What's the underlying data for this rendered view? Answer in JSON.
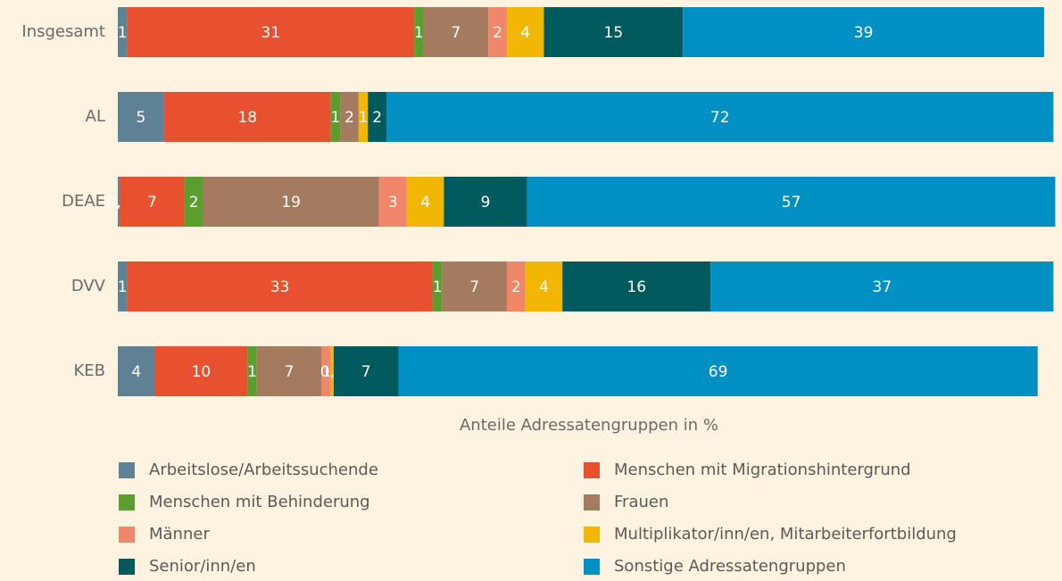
{
  "chart_data": {
    "type": "stacked_barh",
    "categories": [
      "Insgesamt",
      "AL",
      "DEAE",
      "DVV",
      "KEB"
    ],
    "xlabel": "Anteile Adressatengruppen in %",
    "xlim": [
      0,
      100
    ],
    "series": [
      {
        "name": "Arbeitslose/Arbeitssuchende",
        "color": "#5e8196",
        "values": [
          1,
          5,
          0.2,
          1,
          4
        ],
        "value_labels": [
          "1",
          "5",
          "0,2",
          "1",
          "4"
        ]
      },
      {
        "name": "Menschen mit Migrationshintergrund",
        "color": "#e8512f",
        "values": [
          31,
          18,
          7,
          33,
          10
        ]
      },
      {
        "name": "Menschen mit Behinderung",
        "color": "#5a9e2f",
        "values": [
          1,
          1,
          2,
          1,
          1
        ]
      },
      {
        "name": "Frauen",
        "color": "#a47b5f",
        "values": [
          7,
          2,
          19,
          7,
          7
        ]
      },
      {
        "name": "Männer",
        "color": "#f0876a",
        "values": [
          2,
          0,
          3,
          2,
          1
        ],
        "value_labels": [
          "2",
          null,
          "3",
          "2",
          "1"
        ]
      },
      {
        "name": "Multiplikator/inn/en, Mitarbeiterfortbildung",
        "color": "#f2b705",
        "values": [
          4,
          1,
          4,
          4,
          0.3
        ],
        "value_labels": [
          "4",
          "1",
          "4",
          "4",
          "0,3"
        ]
      },
      {
        "name": "Senior/inn/en",
        "color": "#005a5e",
        "values": [
          15,
          2,
          9,
          16,
          7
        ]
      },
      {
        "name": "Sonstige Adressatengruppen",
        "color": "#0090c4",
        "values": [
          39,
          72,
          57,
          37,
          69
        ]
      }
    ]
  }
}
